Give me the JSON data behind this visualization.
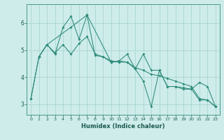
{
  "xlabel": "Humidex (Indice chaleur)",
  "background_color": "#cdecea",
  "grid_color": "#aad6d2",
  "line_color": "#2e8b7a",
  "xlim": [
    -0.5,
    23.5
  ],
  "ylim": [
    2.6,
    6.7
  ],
  "yticks": [
    3,
    4,
    5,
    6
  ],
  "xticks": [
    0,
    1,
    2,
    3,
    4,
    5,
    6,
    7,
    8,
    9,
    10,
    11,
    12,
    13,
    14,
    15,
    16,
    17,
    18,
    19,
    20,
    21,
    22,
    23
  ],
  "line1_x": [
    0,
    1,
    2,
    3,
    4,
    5,
    6,
    7,
    8,
    9,
    10,
    11,
    12,
    13,
    14,
    15,
    16,
    17,
    18,
    19,
    20,
    21,
    22,
    23
  ],
  "line1_y": [
    3.2,
    4.75,
    5.2,
    4.85,
    5.85,
    6.25,
    5.4,
    6.3,
    4.8,
    4.75,
    4.55,
    4.6,
    4.85,
    4.3,
    3.85,
    2.9,
    4.25,
    3.65,
    3.65,
    3.6,
    3.55,
    3.15,
    3.15,
    2.9
  ],
  "line2_x": [
    0,
    1,
    2,
    3,
    4,
    5,
    6,
    7,
    8,
    9,
    10,
    11,
    12,
    13,
    14,
    15,
    16,
    17,
    18,
    19,
    20,
    21,
    22,
    23
  ],
  "line2_y": [
    3.2,
    4.75,
    5.2,
    4.9,
    5.2,
    4.85,
    5.25,
    5.5,
    4.85,
    4.75,
    4.6,
    4.55,
    4.55,
    4.35,
    4.25,
    4.1,
    4.05,
    3.95,
    3.85,
    3.75,
    3.65,
    3.2,
    3.15,
    2.9
  ],
  "line3_x": [
    1,
    2,
    5,
    7,
    10,
    11,
    12,
    13,
    14,
    15,
    16,
    17,
    18,
    19,
    20,
    21,
    22,
    23
  ],
  "line3_y": [
    4.75,
    5.2,
    5.85,
    6.3,
    4.55,
    4.6,
    4.55,
    4.3,
    4.85,
    4.25,
    4.25,
    3.65,
    3.65,
    3.55,
    3.55,
    3.8,
    3.65,
    2.9
  ]
}
